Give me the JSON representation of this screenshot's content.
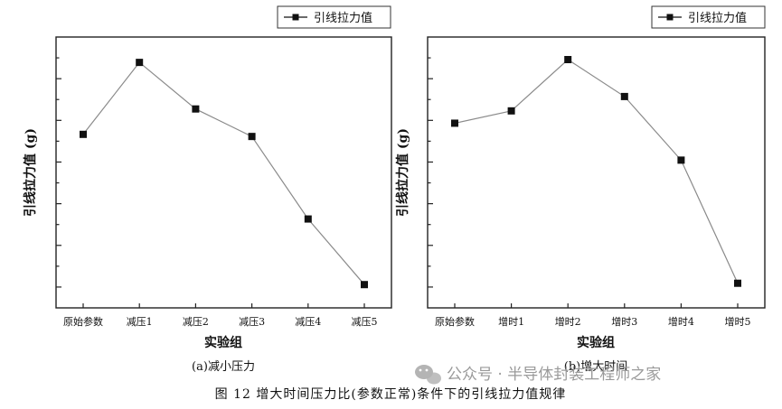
{
  "figure_caption": "图 12 增大时间压力比(参数正常)条件下的引线拉力值规律",
  "watermark": "公众号 · 半导体封装工程师之家",
  "watermark_icon": "wechat-icon",
  "chart_data": [
    {
      "type": "line",
      "caption": "(a)减小压力",
      "xlabel": "实验组",
      "ylabel": "引线拉力值 (g)",
      "legend": "引线拉力值",
      "legend_position": "top-right",
      "categories": [
        "原始参数",
        "减压1",
        "减压2",
        "减压3",
        "减压4",
        "减压5"
      ],
      "series": [
        {
          "name": "引线拉力值",
          "values": [
            0.62,
            0.96,
            0.74,
            0.61,
            0.22,
            -0.09
          ]
        }
      ],
      "ylim": [
        -0.2,
        1.08
      ],
      "y_tick_labels_shown": false,
      "grid": false,
      "marker": "square",
      "line_color": "#8a8a8a"
    },
    {
      "type": "line",
      "caption": "(b)增大时间",
      "xlabel": "实验组",
      "ylabel": "引线拉力值 (g)",
      "legend": "引线拉力值",
      "legend_position": "top-right",
      "categories": [
        "原始参数",
        "增时1",
        "增时2",
        "增时3",
        "增时4",
        "增时5"
      ],
      "series": [
        {
          "name": "引线拉力值",
          "values": [
            0.6,
            0.66,
            0.91,
            0.73,
            0.42,
            -0.18
          ]
        }
      ],
      "ylim": [
        -0.3,
        1.02
      ],
      "y_tick_labels_shown": false,
      "grid": false,
      "marker": "square",
      "line_color": "#8a8a8a"
    }
  ]
}
